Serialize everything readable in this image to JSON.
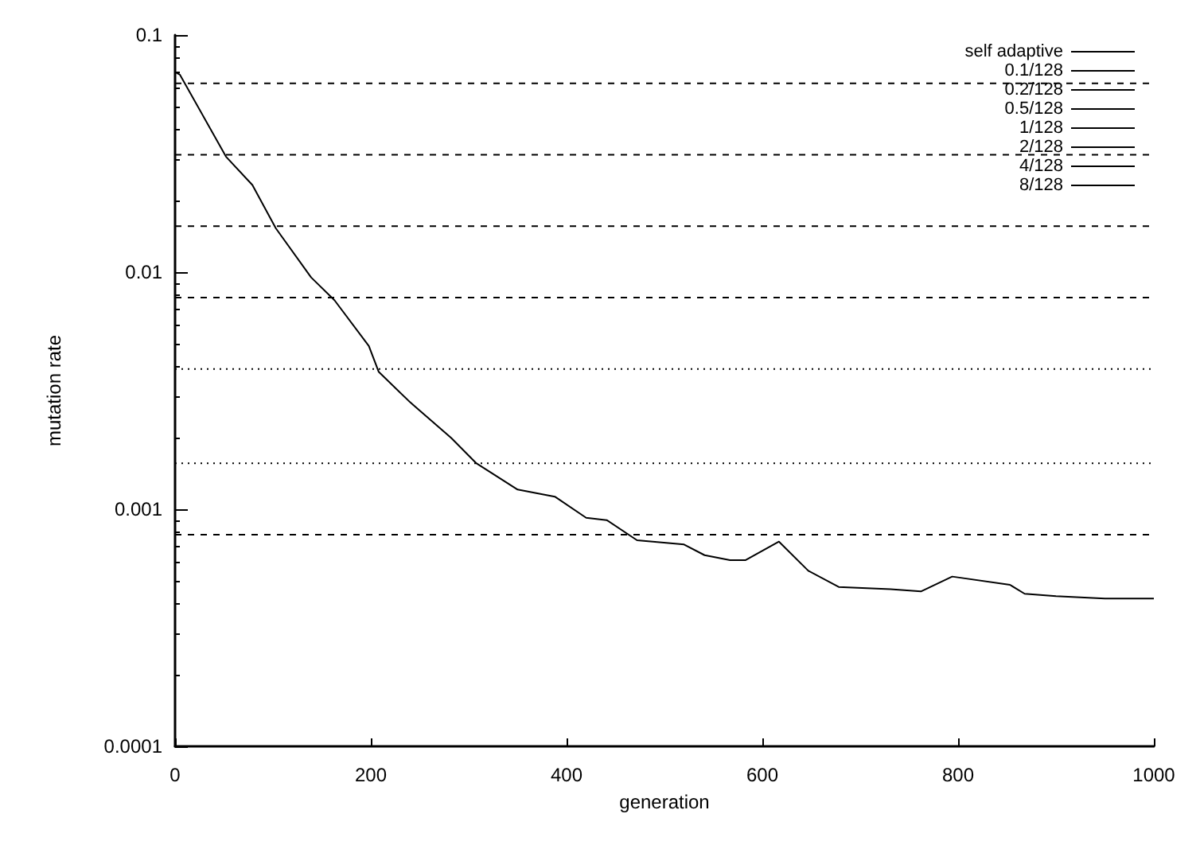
{
  "chart_data": {
    "type": "line",
    "xlabel": "generation",
    "ylabel": "mutation rate",
    "log": "y",
    "xlim": [
      0,
      1000
    ],
    "xticks": [
      0,
      200,
      400,
      600,
      800,
      1000
    ],
    "ylim": [
      0.0001,
      0.1
    ],
    "yticks": [
      0.0001,
      0.001,
      0.01,
      0.1
    ],
    "grid": false,
    "legend": "top right",
    "marker": "none",
    "series": [
      {
        "name": "self adaptive",
        "color": "#000000",
        "line_style": "solid",
        "x": [
          0,
          5,
          52,
          79,
          103,
          139,
          163,
          198,
          208,
          240,
          282,
          308,
          350,
          388,
          420,
          441,
          472,
          520,
          541,
          567,
          583,
          617,
          647,
          678,
          731,
          762,
          794,
          853,
          868,
          900,
          950,
          1000
        ],
        "values": [
          0.0697,
          0.068,
          0.0307,
          0.0233,
          0.0153,
          0.0095,
          0.0076,
          0.00488,
          0.0038,
          0.00283,
          0.002,
          0.00156,
          0.00121,
          0.00113,
          0.00092,
          0.0009,
          0.00074,
          0.00071,
          0.00064,
          0.00061,
          0.00061,
          0.00073,
          0.00055,
          0.00047,
          0.00046,
          0.00045,
          0.00052,
          0.00048,
          0.00044,
          0.00043,
          0.00042,
          0.00042
        ]
      },
      {
        "name": "0.1/128",
        "color": "#000000",
        "line_style": "dashed",
        "x": [
          0,
          1000
        ],
        "values": [
          0.00078125,
          0.00078125
        ]
      },
      {
        "name": "0.2/128",
        "color": "#000000",
        "line_style": "dotted",
        "x": [
          0,
          1000
        ],
        "values": [
          0.0015625,
          0.0015625
        ]
      },
      {
        "name": "0.5/128",
        "color": "#000000",
        "line_style": "dotted",
        "x": [
          0,
          1000
        ],
        "values": [
          0.00390625,
          0.00390625
        ]
      },
      {
        "name": "1/128",
        "color": "#000000",
        "line_style": "dashed",
        "x": [
          0,
          1000
        ],
        "values": [
          0.0078125,
          0.0078125
        ]
      },
      {
        "name": "2/128",
        "color": "#000000",
        "line_style": "dashed",
        "x": [
          0,
          1000
        ],
        "values": [
          0.015625,
          0.015625
        ]
      },
      {
        "name": "4/128",
        "color": "#000000",
        "line_style": "dashed",
        "x": [
          0,
          1000
        ],
        "values": [
          0.03125,
          0.03125
        ]
      },
      {
        "name": "8/128",
        "color": "#000000",
        "line_style": "dashed",
        "x": [
          0,
          1000
        ],
        "values": [
          0.0625,
          0.0625
        ]
      }
    ]
  }
}
